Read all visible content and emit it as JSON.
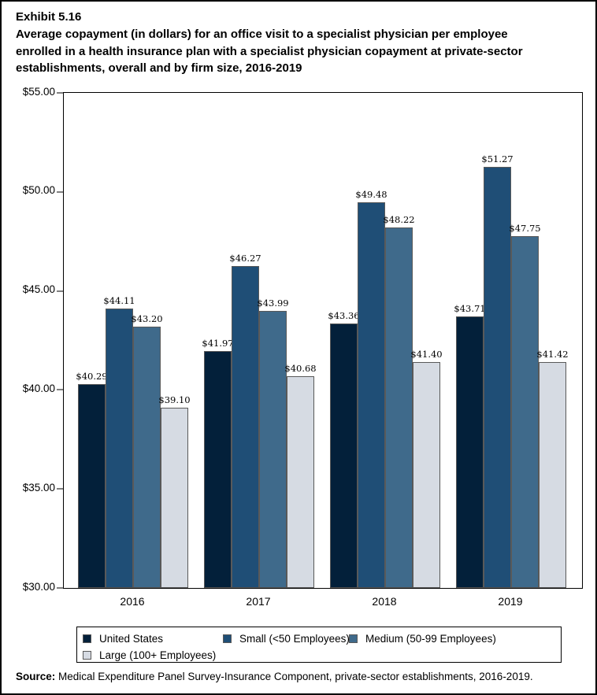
{
  "page": {
    "exhibit_label": "Exhibit 5.16",
    "title_lines": [
      "Average copayment (in dollars) for an office visit to a specialist physician per employee",
      "enrolled in a health insurance plan with a specialist physician copayment at private-sector",
      "establishments, overall and by firm size, 2016-2019"
    ],
    "source_prefix": "Source:",
    "source_text": " Medical Expenditure Panel Survey-Insurance Component, private-sector establishments, 2016-2019."
  },
  "colors": {
    "background": "#FFFFFF",
    "frame": "#000000",
    "plot_border": "#000000",
    "bar_border": "#595959",
    "tick": "#808080",
    "legend_border": "#000000",
    "swatch_border": "#595959"
  },
  "chart_data": {
    "type": "bar",
    "title": "Average copayment (in dollars) for an office visit to a specialist physician per employee enrolled in a health insurance plan with a specialist physician copayment at private-sector establishments, overall and by firm size, 2016-2019",
    "xlabel": "",
    "ylabel": "",
    "grid": false,
    "legend_position": "bottom",
    "categories": [
      "2016",
      "2017",
      "2018",
      "2019"
    ],
    "series": [
      {
        "key": "united-states",
        "name": "United States",
        "color": "#03203A",
        "values": [
          40.29,
          41.97,
          43.36,
          43.71
        ],
        "labels": [
          "$40.29",
          "$41.97",
          "$43.36",
          "$43.71"
        ]
      },
      {
        "key": "small",
        "name": "Small (<50 Employees)",
        "color": "#1F4E76",
        "values": [
          44.11,
          46.27,
          49.48,
          51.27
        ],
        "labels": [
          "$44.11",
          "$46.27",
          "$49.48",
          "$51.27"
        ]
      },
      {
        "key": "medium",
        "name": "Medium (50-99 Employees)",
        "color": "#3F6A8B",
        "values": [
          43.2,
          43.99,
          48.22,
          47.75
        ],
        "labels": [
          "$43.20",
          "$43.99",
          "$48.22",
          "$47.75"
        ]
      },
      {
        "key": "large",
        "name": "Large (100+ Employees)",
        "color": "#D6DBE3",
        "values": [
          39.1,
          40.68,
          41.4,
          41.42
        ],
        "labels": [
          "$39.10",
          "$40.68",
          "$41.40",
          "$41.42"
        ]
      }
    ],
    "y_axis": {
      "min": 30,
      "max": 55,
      "tick_values": [
        55,
        50,
        45,
        40,
        35,
        30
      ],
      "tick_labels": [
        "$55.00",
        "$50.00",
        "$45.00",
        "$40.00",
        "$35.00",
        "$30.00"
      ]
    }
  }
}
